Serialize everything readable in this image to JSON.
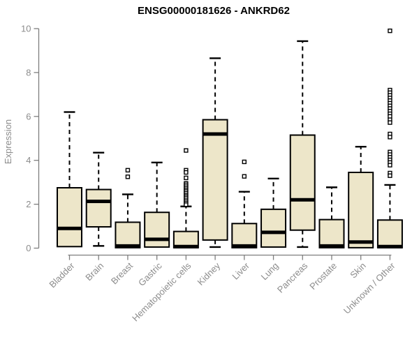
{
  "colors": {
    "box_fill": "#EDE6C9",
    "box_stroke": "#000000",
    "median_stroke": "#000000",
    "axis": "#7E7E7E",
    "tick_label": "#8C8C8C",
    "title": "#000000",
    "outlier_fill": "#FFFFFF"
  },
  "chart_data": {
    "type": "boxplot",
    "title": "ENSG00000181626 - ANKRD62",
    "ylabel": "Expression",
    "xlabel": "",
    "ylim": [
      0,
      10
    ],
    "yticks": [
      0,
      2,
      4,
      6,
      8,
      10
    ],
    "grid": false,
    "categories": [
      "Bladder",
      "Brain",
      "Breast",
      "Gastric",
      "Hematopoietic cells",
      "Kidney",
      "Liver",
      "Lung",
      "Pancreas",
      "Prostate",
      "Skin",
      "Unknown / Other"
    ],
    "boxes": [
      {
        "category": "Bladder",
        "low": 0.07,
        "q1": 0.07,
        "median": 0.9,
        "q3": 2.75,
        "high": 6.2,
        "outliers": []
      },
      {
        "category": "Brain",
        "low": 0.1,
        "q1": 0.97,
        "median": 2.13,
        "q3": 2.67,
        "high": 4.35,
        "outliers": []
      },
      {
        "category": "Breast",
        "low": 0.02,
        "q1": 0.02,
        "median": 0.1,
        "q3": 1.18,
        "high": 2.45,
        "outliers": [
          3.55,
          3.25
        ]
      },
      {
        "category": "Gastric",
        "low": 0.05,
        "q1": 0.05,
        "median": 0.4,
        "q3": 1.63,
        "high": 3.9,
        "outliers": []
      },
      {
        "category": "Hematopoietic cells",
        "low": 0.02,
        "q1": 0.02,
        "median": 0.07,
        "q3": 0.76,
        "high": 1.9,
        "outliers": [
          4.45,
          3.55,
          3.45,
          3.2,
          2.95,
          2.88,
          2.8,
          2.72,
          2.65,
          2.58,
          2.5,
          2.42,
          2.35,
          2.28,
          2.2,
          2.12,
          2.05,
          1.98
        ]
      },
      {
        "category": "Kidney",
        "low": 0.05,
        "q1": 0.37,
        "median": 5.2,
        "q3": 5.85,
        "high": 8.65,
        "outliers": []
      },
      {
        "category": "Liver",
        "low": 0.02,
        "q1": 0.02,
        "median": 0.1,
        "q3": 1.12,
        "high": 2.57,
        "outliers": [
          3.93,
          3.27
        ]
      },
      {
        "category": "Lung",
        "low": 0.05,
        "q1": 0.05,
        "median": 0.72,
        "q3": 1.77,
        "high": 3.17,
        "outliers": []
      },
      {
        "category": "Pancreas",
        "low": 0.05,
        "q1": 0.82,
        "median": 2.2,
        "q3": 5.15,
        "high": 9.43,
        "outliers": []
      },
      {
        "category": "Prostate",
        "low": 0.02,
        "q1": 0.02,
        "median": 0.1,
        "q3": 1.3,
        "high": 2.77,
        "outliers": []
      },
      {
        "category": "Skin",
        "low": 0.02,
        "q1": 0.02,
        "median": 0.28,
        "q3": 3.45,
        "high": 4.62,
        "outliers": []
      },
      {
        "category": "Unknown / Other",
        "low": 0.02,
        "q1": 0.02,
        "median": 0.07,
        "q3": 1.28,
        "high": 2.88,
        "outliers": [
          9.9,
          7.2,
          7.08,
          6.96,
          6.84,
          6.72,
          6.6,
          6.48,
          6.36,
          6.24,
          6.12,
          6.0,
          5.85,
          5.72,
          5.2,
          5.06,
          4.38,
          4.26,
          4.14,
          4.02,
          3.9,
          3.78,
          3.42,
          3.3
        ]
      }
    ]
  }
}
